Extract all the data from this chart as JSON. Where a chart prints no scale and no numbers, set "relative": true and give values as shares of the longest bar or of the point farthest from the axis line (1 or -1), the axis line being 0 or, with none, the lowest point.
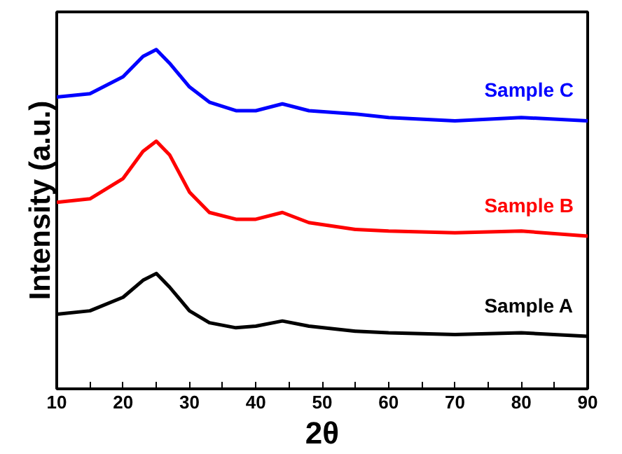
{
  "chart_data": {
    "type": "line",
    "relative": true,
    "xlabel": "2θ",
    "ylabel": "Intensity (a.u.)",
    "x": [
      10,
      15,
      20,
      23,
      25,
      27,
      30,
      33,
      37,
      40,
      44,
      48,
      55,
      60,
      70,
      80,
      90
    ],
    "xlim": [
      10,
      90
    ],
    "xticks": [
      10,
      {
        "value": 15,
        "label": null
      },
      20,
      {
        "value": 25,
        "label": null
      },
      30,
      {
        "value": 35,
        "label": null
      },
      40,
      {
        "value": 45,
        "label": null
      },
      50,
      {
        "value": 55,
        "label": null
      },
      60,
      {
        "value": 65,
        "label": null
      },
      70,
      {
        "value": 75,
        "label": null
      },
      80,
      {
        "value": 85,
        "label": null
      },
      90
    ],
    "tick_labels": "x",
    "grid": false,
    "line_style": "solid",
    "series": [
      {
        "name": "Sample C",
        "color": "#0000ff",
        "values": [
          0.86,
          0.87,
          0.92,
          0.98,
          1.0,
          0.96,
          0.89,
          0.845,
          0.82,
          0.82,
          0.84,
          0.82,
          0.81,
          0.8,
          0.79,
          0.8,
          0.79
        ]
      },
      {
        "name": "Sample B",
        "color": "#ff0000",
        "values": [
          0.55,
          0.56,
          0.62,
          0.7,
          0.73,
          0.69,
          0.58,
          0.52,
          0.5,
          0.5,
          0.52,
          0.49,
          0.47,
          0.465,
          0.46,
          0.465,
          0.45
        ]
      },
      {
        "name": "Sample A",
        "color": "#000000",
        "values": [
          0.22,
          0.23,
          0.27,
          0.32,
          0.34,
          0.3,
          0.23,
          0.195,
          0.18,
          0.185,
          0.2,
          0.185,
          0.17,
          0.165,
          0.16,
          0.165,
          0.155
        ]
      }
    ]
  }
}
